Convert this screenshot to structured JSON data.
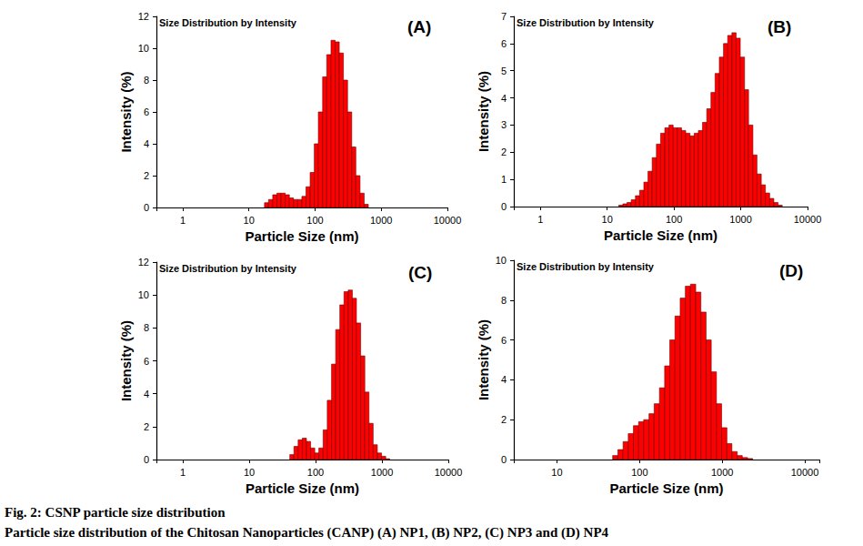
{
  "chart_data": [
    {
      "type": "histogram",
      "title": "Size Distribution by Intensity",
      "annotations": [
        "(A)"
      ],
      "xlabel": "Particle Size (nm)",
      "ylabel": "Intensity (%)",
      "bins": [
        17.2,
        19.8,
        22.9,
        26.5,
        30.6,
        35.4,
        40.9,
        47.2,
        54.6,
        63.1,
        72.9,
        84.2,
        97.3,
        112,
        130,
        150,
        174,
        201,
        232,
        268,
        310,
        358,
        413,
        478,
        552,
        638
      ],
      "values": [
        0.3,
        0.5,
        0.8,
        0.9,
        0.9,
        0.8,
        0.6,
        0.5,
        0.5,
        0.7,
        1.3,
        2.2,
        4.0,
        6.0,
        8.2,
        9.6,
        10.5,
        10.4,
        9.7,
        8.0,
        6.0,
        3.8,
        2.0,
        0.9,
        0.2
      ],
      "color": "#ff0000",
      "log": "x",
      "xlim": [
        0.4,
        10000
      ],
      "xticks": [
        1,
        10,
        100,
        1000,
        10000
      ],
      "ylim": [
        0,
        12
      ],
      "yticks": [
        0,
        2,
        4,
        6,
        8,
        10,
        12
      ],
      "grid": false
    },
    {
      "type": "histogram",
      "title": "Size Distribution by Intensity",
      "annotations": [
        "(B)"
      ],
      "xlabel": "Particle Size (nm)",
      "ylabel": "Intensity (%)",
      "bins": [
        14.9,
        17.2,
        19.8,
        22.9,
        26.5,
        30.6,
        35.4,
        40.9,
        47.2,
        54.6,
        63.1,
        72.9,
        84.2,
        97.3,
        112,
        130,
        150,
        174,
        201,
        232,
        268,
        310,
        358,
        413,
        478,
        552,
        638,
        737,
        852,
        984,
        1140,
        1310,
        1520,
        1750,
        2030,
        2340,
        2710,
        3130,
        3620,
        4180
      ],
      "values": [
        0.05,
        0.1,
        0.15,
        0.25,
        0.4,
        0.6,
        0.9,
        1.3,
        1.8,
        2.3,
        2.7,
        2.9,
        3.0,
        2.9,
        2.9,
        2.8,
        2.7,
        2.6,
        2.7,
        2.8,
        3.1,
        3.6,
        4.2,
        4.9,
        5.5,
        6.0,
        6.3,
        6.4,
        6.2,
        5.5,
        4.3,
        3.0,
        1.9,
        1.2,
        0.8,
        0.5,
        0.3,
        0.15,
        0.05
      ],
      "color": "#ff0000",
      "log": "x",
      "xlim": [
        0.4,
        10000
      ],
      "xticks": [
        1,
        10,
        100,
        1000,
        10000
      ],
      "ylim": [
        0,
        7
      ],
      "yticks": [
        0,
        1,
        2,
        3,
        4,
        5,
        6,
        7
      ],
      "grid": false
    },
    {
      "type": "histogram",
      "title": "Size Distribution by Intensity",
      "annotations": [
        "(C)"
      ],
      "xlabel": "Particle Size (nm)",
      "ylabel": "Intensity (%)",
      "bins": [
        40.9,
        47.2,
        54.6,
        63.1,
        72.9,
        84.2,
        97.3,
        112,
        130,
        150,
        174,
        201,
        232,
        268,
        310,
        358,
        413,
        478,
        552,
        638,
        737,
        852,
        984,
        1140,
        1310
      ],
      "values": [
        0.3,
        0.8,
        1.2,
        1.3,
        1.1,
        0.7,
        0.4,
        0.7,
        1.8,
        3.6,
        5.8,
        7.9,
        9.4,
        10.2,
        10.3,
        9.8,
        8.3,
        6.3,
        4.1,
        2.2,
        0.9,
        0.4,
        0.2,
        0.05
      ],
      "color": "#ff0000",
      "log": "x",
      "xlim": [
        0.4,
        10000
      ],
      "xticks": [
        1,
        10,
        100,
        1000,
        10000
      ],
      "ylim": [
        0,
        12
      ],
      "yticks": [
        0,
        2,
        4,
        6,
        8,
        10,
        12
      ],
      "grid": false
    },
    {
      "type": "histogram",
      "title": "Size Distribution by Intensity",
      "annotations": [
        "(D)"
      ],
      "xlabel": "Particle Size (nm)",
      "ylabel": "Intensity (%)",
      "bins": [
        47.2,
        54.6,
        63.1,
        72.9,
        84.2,
        97.3,
        112,
        130,
        150,
        174,
        201,
        232,
        268,
        310,
        358,
        413,
        478,
        552,
        638,
        737,
        852,
        984,
        1140,
        1310,
        1520,
        1750,
        2030,
        2340
      ],
      "values": [
        0.2,
        0.5,
        0.9,
        1.3,
        1.7,
        1.9,
        2.0,
        2.3,
        2.8,
        3.6,
        4.7,
        6.0,
        7.2,
        8.1,
        8.7,
        8.8,
        8.4,
        7.4,
        6.0,
        4.4,
        2.8,
        1.6,
        0.8,
        0.4,
        0.2,
        0.1,
        0.05
      ],
      "color": "#ff0000",
      "log": "x",
      "xlim": [
        3,
        15000
      ],
      "xticks": [
        10,
        100,
        1000,
        10000
      ],
      "ylim": [
        0,
        10
      ],
      "yticks": [
        0,
        2,
        4,
        6,
        8,
        10
      ],
      "grid": false
    }
  ],
  "caption": {
    "title": "Fig. 2: CSNP particle size distribution",
    "text": "Particle size distribution of the Chitosan Nanoparticles (CANP) (A) NP1, (B) NP2, (C) NP3 and (D) NP4"
  }
}
